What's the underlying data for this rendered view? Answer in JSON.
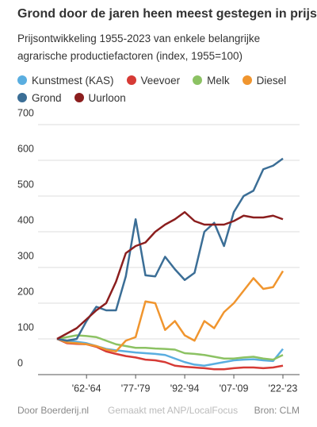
{
  "chart_data": {
    "type": "line",
    "title": "Grond door de jaren heen meest gestegen in prijs",
    "subtitle": "Prijsontwikkeling 1955-2023 van enkele belangrijke agrarische productiefactoren (index, 1955=100)",
    "categories": [
      null,
      null,
      null,
      "'62-'64",
      null,
      null,
      null,
      null,
      "'77-'79",
      null,
      null,
      null,
      null,
      "'92-'94",
      null,
      null,
      null,
      null,
      "'07-'09",
      null,
      null,
      null,
      null,
      "'22-'23"
    ],
    "series": [
      {
        "name": "Kunstmest (KAS)",
        "color": "#5aaee0",
        "values": [
          100,
          95,
          92,
          88,
          80,
          72,
          68,
          65,
          62,
          60,
          58,
          55,
          45,
          35,
          28,
          25,
          30,
          35,
          40,
          42,
          43,
          40,
          38,
          72
        ]
      },
      {
        "name": "Veevoer",
        "color": "#d63a35",
        "values": [
          100,
          88,
          86,
          85,
          78,
          65,
          58,
          52,
          48,
          42,
          40,
          35,
          25,
          22,
          20,
          18,
          15,
          15,
          18,
          20,
          20,
          18,
          20,
          25
        ]
      },
      {
        "name": "Melk",
        "color": "#8cc263",
        "values": [
          100,
          105,
          110,
          108,
          105,
          95,
          85,
          80,
          75,
          75,
          73,
          72,
          70,
          60,
          58,
          55,
          50,
          45,
          45,
          48,
          50,
          45,
          42,
          55
        ]
      },
      {
        "name": "Diesel",
        "color": "#f0952e",
        "values": [
          100,
          90,
          88,
          85,
          80,
          70,
          65,
          95,
          105,
          205,
          200,
          125,
          150,
          110,
          95,
          150,
          130,
          175,
          200,
          235,
          270,
          240,
          245,
          290
        ]
      },
      {
        "name": "Grond",
        "color": "#3b6e96",
        "values": [
          100,
          95,
          100,
          150,
          190,
          180,
          180,
          275,
          435,
          278,
          275,
          330,
          295,
          265,
          285,
          400,
          425,
          360,
          455,
          500,
          515,
          575,
          585,
          605
        ]
      },
      {
        "name": "Uurloon",
        "color": "#8b1e1e",
        "values": [
          100,
          115,
          130,
          155,
          180,
          200,
          260,
          340,
          360,
          370,
          400,
          420,
          435,
          455,
          430,
          420,
          420,
          420,
          430,
          445,
          440,
          440,
          445,
          435
        ]
      }
    ],
    "ylim": [
      0,
      700
    ],
    "yticks": [
      0,
      100,
      200,
      300,
      400,
      500,
      600,
      700
    ],
    "grid": true,
    "source": "Door Boerderij.nl",
    "made_with": "Gemaakt met ANP/LocalFocus",
    "bron": "Bron:  CLM"
  }
}
